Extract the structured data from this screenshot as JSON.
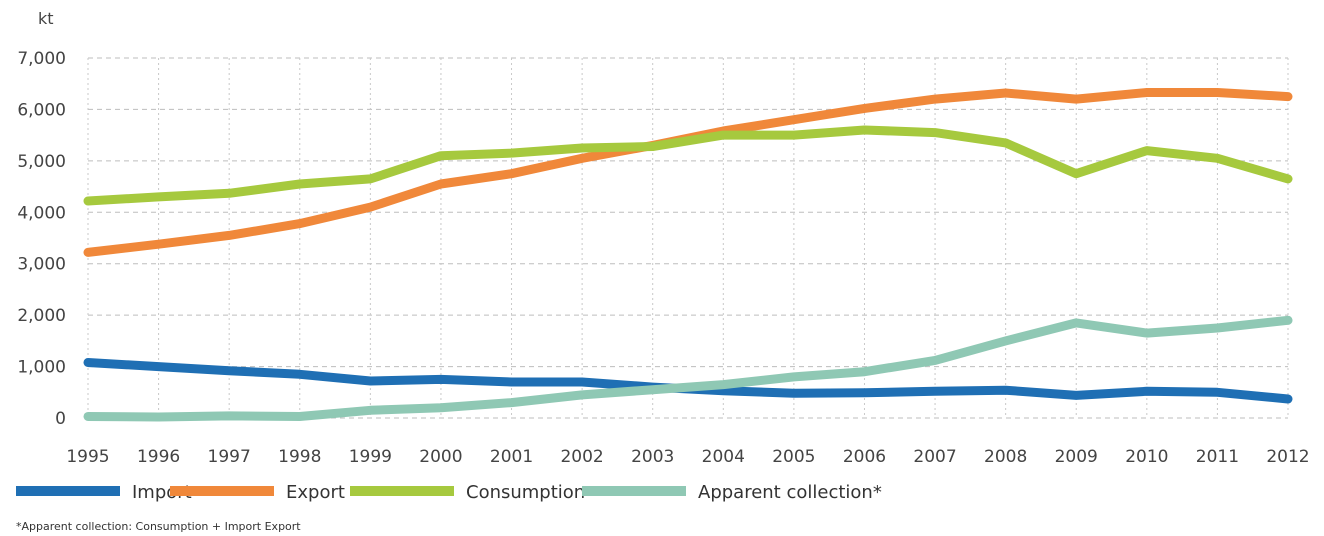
{
  "chart_data": {
    "type": "line",
    "ylabel": "kt",
    "ylim": [
      0,
      7000
    ],
    "yticks": [
      "0",
      "1,000",
      "2,000",
      "3,000",
      "4,000",
      "5,000",
      "6,000",
      "7,000"
    ],
    "categories": [
      "1995",
      "1996",
      "1997",
      "1998",
      "1999",
      "2000",
      "2001",
      "2002",
      "2003",
      "2004",
      "2005",
      "2006",
      "2007",
      "2008",
      "2009",
      "2010",
      "2011",
      "2012"
    ],
    "grid": "vertical dotted and horizontal dashed",
    "legend_position": "bottom-left",
    "series": [
      {
        "name": "Import",
        "color": "#1f6fb4",
        "values": [
          1080,
          1000,
          920,
          850,
          720,
          750,
          700,
          700,
          600,
          530,
          480,
          490,
          520,
          540,
          440,
          520,
          500,
          370
        ]
      },
      {
        "name": "Export",
        "color": "#f0883a",
        "values": [
          3220,
          3380,
          3550,
          3780,
          4100,
          4550,
          4750,
          5050,
          5300,
          5580,
          5800,
          6020,
          6200,
          6320,
          6200,
          6330,
          6330,
          6250
        ]
      },
      {
        "name": "Consumption",
        "color": "#a6c93e",
        "values": [
          4220,
          4300,
          4370,
          4550,
          4650,
          5100,
          5150,
          5250,
          5280,
          5500,
          5500,
          5600,
          5550,
          5350,
          4750,
          5200,
          5050,
          4650
        ]
      },
      {
        "name": "Apparent collection*",
        "color": "#8fc8b4",
        "values": [
          30,
          20,
          40,
          30,
          150,
          200,
          300,
          450,
          550,
          650,
          800,
          900,
          1120,
          1500,
          1850,
          1650,
          1750,
          1900
        ]
      }
    ]
  },
  "footnote": "*Apparent collection: Consumption + Import   Export"
}
